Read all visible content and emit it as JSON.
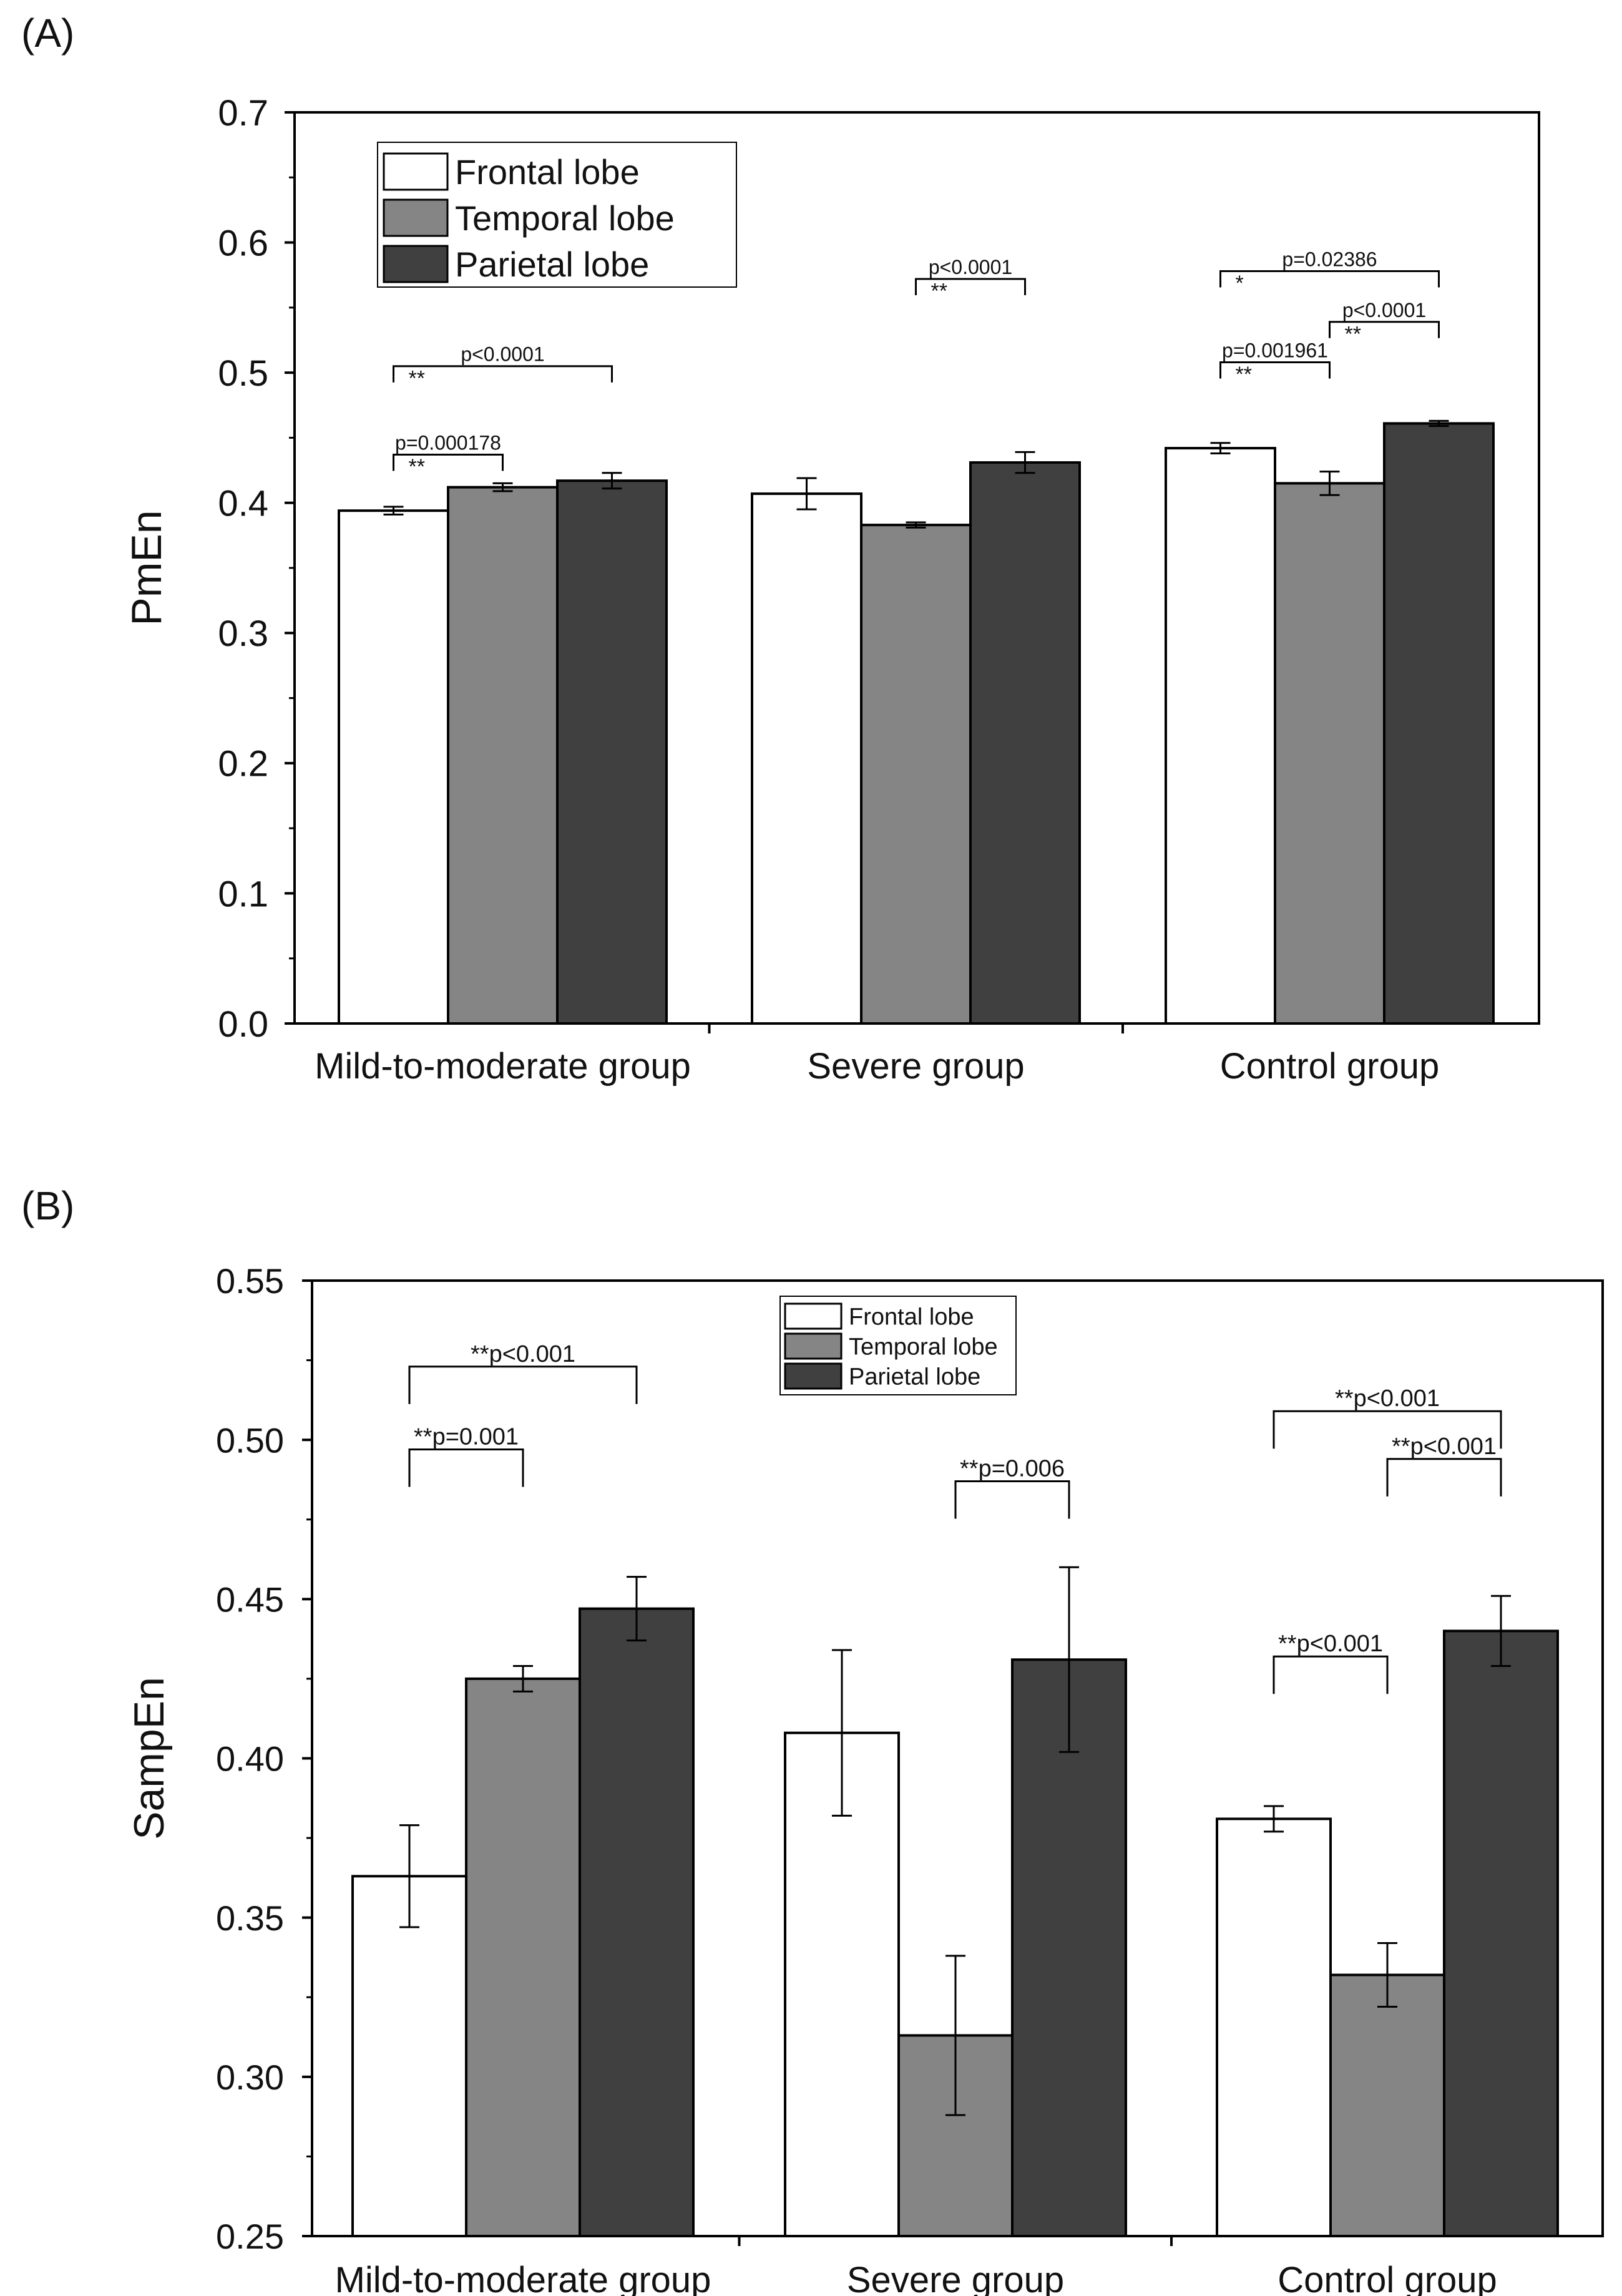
{
  "chart_data": [
    {
      "type": "bar",
      "panel_label": "(A)",
      "ylabel": "PmEn",
      "xlabel": "",
      "ylim": [
        0,
        0.7
      ],
      "yticks": [
        0.0,
        0.1,
        0.2,
        0.3,
        0.4,
        0.5,
        0.6,
        0.7
      ],
      "ytick_labels": [
        "0.0",
        "0.1",
        "0.2",
        "0.3",
        "0.4",
        "0.5",
        "0.6",
        "0.7"
      ],
      "grid": false,
      "categories": [
        "Mild-to-moderate group",
        "Severe group",
        "Control group"
      ],
      "series": [
        {
          "name": "Frontal lobe",
          "color": "#ffffff",
          "values": [
            0.394,
            0.407,
            0.442
          ],
          "errors": [
            0.003,
            0.012,
            0.004
          ]
        },
        {
          "name": "Temporal lobe",
          "color": "#858585",
          "values": [
            0.412,
            0.383,
            0.415
          ],
          "errors": [
            0.003,
            0.002,
            0.009
          ]
        },
        {
          "name": "Parietal lobe",
          "color": "#404040",
          "values": [
            0.417,
            0.431,
            0.461
          ],
          "errors": [
            0.006,
            0.008,
            0.002
          ]
        }
      ],
      "legend": {
        "position": "top-left"
      },
      "annotations": [
        {
          "category": 0,
          "from": 0,
          "to": 2,
          "y": 0.505,
          "label": "p<0.0001",
          "stars": "**"
        },
        {
          "category": 0,
          "from": 0,
          "to": 1,
          "y": 0.437,
          "label": "p=0.000178",
          "stars": "**"
        },
        {
          "category": 1,
          "from": 1,
          "to": 2,
          "y": 0.572,
          "label": "p<0.0001",
          "stars": "**"
        },
        {
          "category": 2,
          "from": 0,
          "to": 2,
          "y": 0.578,
          "label": "p=0.02386",
          "stars": "*"
        },
        {
          "category": 2,
          "from": 1,
          "to": 2,
          "y": 0.539,
          "label": "p<0.0001",
          "stars": "**"
        },
        {
          "category": 2,
          "from": 0,
          "to": 1,
          "y": 0.508,
          "label": "p=0.001961",
          "stars": "**"
        }
      ]
    },
    {
      "type": "bar",
      "panel_label": "(B)",
      "ylabel": "SampEn",
      "xlabel": "",
      "ylim": [
        0.25,
        0.55
      ],
      "yticks": [
        0.25,
        0.3,
        0.35,
        0.4,
        0.45,
        0.5,
        0.55
      ],
      "ytick_labels": [
        "0.25",
        "0.30",
        "0.35",
        "0.40",
        "0.45",
        "0.50",
        "0.55"
      ],
      "grid": false,
      "categories": [
        "Mild-to-moderate group",
        "Severe group",
        "Control group"
      ],
      "series": [
        {
          "name": "Frontal lobe",
          "color": "#ffffff",
          "values": [
            0.363,
            0.408,
            0.381
          ],
          "errors": [
            0.016,
            0.026,
            0.004
          ]
        },
        {
          "name": "Temporal lobe",
          "color": "#858585",
          "values": [
            0.425,
            0.313,
            0.332
          ],
          "errors": [
            0.004,
            0.025,
            0.01
          ]
        },
        {
          "name": "Parietal lobe",
          "color": "#404040",
          "values": [
            0.447,
            0.431,
            0.44
          ],
          "errors": [
            0.01,
            0.029,
            0.011
          ]
        }
      ],
      "legend": {
        "position": "top-center"
      },
      "annotations": [
        {
          "category": 0,
          "from": 0,
          "to": 2,
          "y": 0.523,
          "label": "**p<0.001",
          "stars": ""
        },
        {
          "category": 0,
          "from": 0,
          "to": 1,
          "y": 0.497,
          "label": "**p=0.001",
          "stars": ""
        },
        {
          "category": 1,
          "from": 1,
          "to": 2,
          "y": 0.487,
          "label": "**p=0.006",
          "stars": ""
        },
        {
          "category": 2,
          "from": 0,
          "to": 2,
          "y": 0.509,
          "label": "**p<0.001",
          "stars": ""
        },
        {
          "category": 2,
          "from": 1,
          "to": 2,
          "y": 0.494,
          "label": "**p<0.001",
          "stars": ""
        },
        {
          "category": 2,
          "from": 0,
          "to": 1,
          "y": 0.432,
          "label": "**p<0.001",
          "stars": ""
        }
      ]
    }
  ]
}
